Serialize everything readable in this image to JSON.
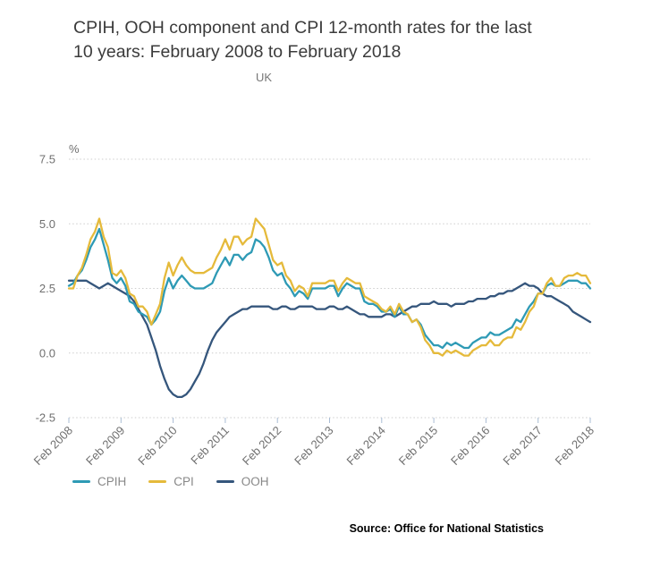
{
  "header": {
    "title": "CPIH, OOH component and CPI 12-month rates for the last 10 years: February 2008 to February 2018",
    "subtitle": "UK"
  },
  "source": {
    "label": "Source: Office for National Statistics"
  },
  "chart_data": {
    "type": "line",
    "title": "CPIH, OOH component and CPI 12-month rates for the last 10 years: February 2008 to February 2018",
    "subtitle": "UK",
    "unit_label": "%",
    "xlabel": "",
    "ylabel": "%",
    "ylim": [
      -2.5,
      7.5
    ],
    "y_ticks": [
      7.5,
      5.0,
      2.5,
      0.0,
      -2.5
    ],
    "x_interval": "monthly",
    "x_tick_labels": [
      "Feb 2008",
      "Feb 2009",
      "Feb 2010",
      "Feb 2011",
      "Feb 2012",
      "Feb 2013",
      "Feb 2014",
      "Feb 2015",
      "Feb 2016",
      "Feb 2017",
      "Feb 2018"
    ],
    "grid": "horizontal-dotted",
    "legend_position": "bottom-left",
    "colors": {
      "grid": "#cdcdcd",
      "axis_text": "#6f6f6f",
      "tick": "#a9bcd4"
    },
    "series": [
      {
        "name": "CPIH",
        "color": "#2e9ab5",
        "values": [
          2.6,
          2.7,
          3.0,
          3.2,
          3.6,
          4.1,
          4.4,
          4.8,
          4.2,
          3.6,
          2.9,
          2.7,
          2.9,
          2.6,
          2.0,
          1.9,
          1.6,
          1.5,
          1.4,
          1.1,
          1.3,
          1.6,
          2.4,
          2.9,
          2.5,
          2.8,
          3.0,
          2.8,
          2.6,
          2.5,
          2.5,
          2.5,
          2.6,
          2.7,
          3.1,
          3.4,
          3.7,
          3.4,
          3.8,
          3.8,
          3.6,
          3.8,
          3.9,
          4.4,
          4.3,
          4.1,
          3.7,
          3.2,
          3.0,
          3.1,
          2.7,
          2.5,
          2.2,
          2.4,
          2.3,
          2.1,
          2.5,
          2.5,
          2.5,
          2.5,
          2.6,
          2.6,
          2.2,
          2.5,
          2.7,
          2.6,
          2.5,
          2.5,
          2.0,
          1.9,
          1.9,
          1.8,
          1.6,
          1.6,
          1.7,
          1.4,
          1.8,
          1.5,
          1.5,
          1.2,
          1.3,
          1.1,
          0.7,
          0.5,
          0.3,
          0.3,
          0.2,
          0.4,
          0.3,
          0.4,
          0.3,
          0.2,
          0.2,
          0.4,
          0.5,
          0.6,
          0.6,
          0.8,
          0.7,
          0.7,
          0.8,
          0.9,
          1.0,
          1.3,
          1.2,
          1.5,
          1.8,
          2.0,
          2.3,
          2.3,
          2.6,
          2.7,
          2.6,
          2.6,
          2.7,
          2.8,
          2.8,
          2.8,
          2.7,
          2.7,
          2.5
        ]
      },
      {
        "name": "CPI",
        "color": "#e5ba3b",
        "values": [
          2.5,
          2.5,
          3.0,
          3.3,
          3.8,
          4.4,
          4.7,
          5.2,
          4.5,
          4.1,
          3.1,
          3.0,
          3.2,
          2.9,
          2.3,
          2.2,
          1.8,
          1.8,
          1.6,
          1.1,
          1.5,
          1.9,
          2.9,
          3.5,
          3.0,
          3.4,
          3.7,
          3.4,
          3.2,
          3.1,
          3.1,
          3.1,
          3.2,
          3.3,
          3.7,
          4.0,
          4.4,
          4.0,
          4.5,
          4.5,
          4.2,
          4.4,
          4.5,
          5.2,
          5.0,
          4.8,
          4.2,
          3.6,
          3.4,
          3.5,
          3.0,
          2.8,
          2.4,
          2.6,
          2.5,
          2.2,
          2.7,
          2.7,
          2.7,
          2.7,
          2.8,
          2.8,
          2.4,
          2.7,
          2.9,
          2.8,
          2.7,
          2.7,
          2.2,
          2.1,
          2.0,
          1.9,
          1.7,
          1.6,
          1.8,
          1.5,
          1.9,
          1.6,
          1.5,
          1.2,
          1.3,
          1.0,
          0.5,
          0.3,
          0.0,
          0.0,
          -0.1,
          0.1,
          0.0,
          0.1,
          0.0,
          -0.1,
          -0.1,
          0.1,
          0.2,
          0.3,
          0.3,
          0.5,
          0.3,
          0.3,
          0.5,
          0.6,
          0.6,
          1.0,
          0.9,
          1.2,
          1.6,
          1.8,
          2.3,
          2.3,
          2.7,
          2.9,
          2.6,
          2.6,
          2.9,
          3.0,
          3.0,
          3.1,
          3.0,
          3.0,
          2.7
        ]
      },
      {
        "name": "OOH",
        "color": "#35567c",
        "values": [
          2.8,
          2.8,
          2.8,
          2.8,
          2.8,
          2.7,
          2.6,
          2.5,
          2.6,
          2.7,
          2.6,
          2.5,
          2.4,
          2.3,
          2.2,
          2.0,
          1.7,
          1.4,
          1.1,
          0.6,
          0.1,
          -0.5,
          -1.0,
          -1.4,
          -1.6,
          -1.7,
          -1.7,
          -1.6,
          -1.4,
          -1.1,
          -0.8,
          -0.4,
          0.1,
          0.5,
          0.8,
          1.0,
          1.2,
          1.4,
          1.5,
          1.6,
          1.7,
          1.7,
          1.8,
          1.8,
          1.8,
          1.8,
          1.8,
          1.7,
          1.7,
          1.8,
          1.8,
          1.7,
          1.7,
          1.8,
          1.8,
          1.8,
          1.8,
          1.7,
          1.7,
          1.7,
          1.8,
          1.8,
          1.7,
          1.7,
          1.8,
          1.7,
          1.6,
          1.5,
          1.5,
          1.4,
          1.4,
          1.4,
          1.4,
          1.5,
          1.5,
          1.4,
          1.5,
          1.6,
          1.7,
          1.8,
          1.8,
          1.9,
          1.9,
          1.9,
          2.0,
          1.9,
          1.9,
          1.9,
          1.8,
          1.9,
          1.9,
          1.9,
          2.0,
          2.0,
          2.1,
          2.1,
          2.1,
          2.2,
          2.2,
          2.3,
          2.3,
          2.4,
          2.4,
          2.5,
          2.6,
          2.7,
          2.6,
          2.6,
          2.5,
          2.3,
          2.2,
          2.2,
          2.1,
          2.0,
          1.9,
          1.8,
          1.6,
          1.5,
          1.4,
          1.3,
          1.2
        ]
      }
    ]
  }
}
